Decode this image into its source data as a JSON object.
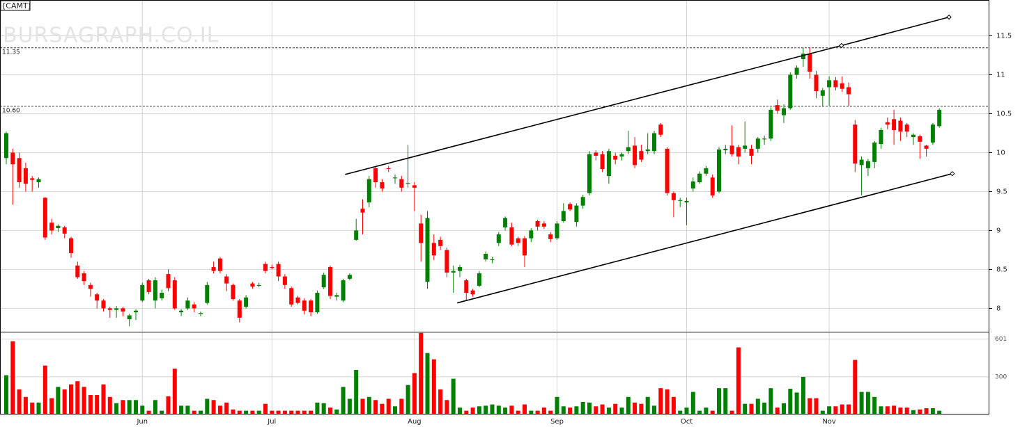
{
  "chart_data": {
    "type": "candlestick",
    "title": "[CAMT]",
    "watermark": "BURSAGRAPH.CO.IL",
    "up_color": "#008000",
    "down_color": "#ff0000",
    "grid": true,
    "categories": [
      null,
      null,
      null,
      null,
      null,
      null,
      null,
      null,
      null,
      null,
      null,
      null,
      null,
      null,
      null,
      null,
      null,
      null,
      null,
      null,
      null,
      "Jun",
      null,
      null,
      null,
      null,
      null,
      null,
      null,
      null,
      null,
      null,
      null,
      null,
      null,
      null,
      null,
      null,
      null,
      null,
      null,
      "Jul",
      null,
      null,
      null,
      null,
      null,
      null,
      null,
      null,
      null,
      null,
      null,
      null,
      null,
      null,
      null,
      null,
      null,
      null,
      null,
      null,
      null,
      "Aug",
      null,
      null,
      null,
      null,
      null,
      null,
      null,
      null,
      null,
      null,
      null,
      null,
      null,
      null,
      null,
      null,
      null,
      null,
      null,
      null,
      null,
      "Sep",
      null,
      null,
      null,
      null,
      null,
      null,
      null,
      null,
      null,
      null,
      null,
      null,
      null,
      null,
      null,
      null,
      null,
      null,
      null,
      "Oct",
      null,
      null,
      null,
      null,
      null,
      null,
      null,
      null,
      null,
      null,
      null,
      null,
      null,
      null,
      null,
      null,
      null,
      null,
      null,
      null,
      null,
      "Nov",
      null,
      null,
      null,
      null,
      null,
      null,
      null,
      null,
      null,
      null,
      null,
      null,
      null,
      null,
      null,
      null,
      null
    ],
    "open": [
      9.93,
      10.0,
      9.93,
      9.8,
      9.67,
      9.62,
      9.42,
      9.1,
      9.03,
      9.04,
      8.9,
      8.55,
      8.45,
      8.3,
      8.18,
      8.1,
      8.0,
      7.98,
      8.0,
      7.86,
      7.95,
      8.1,
      8.36,
      8.1,
      8.13,
      8.44,
      8.36,
      7.95,
      8.0,
      8.05,
      7.93,
      8.07,
      8.53,
      8.64,
      8.41,
      8.3,
      8.1,
      8.02,
      8.32,
      8.29,
      8.57,
      8.53,
      8.57,
      8.41,
      8.26,
      8.14,
      8.1,
      8.1,
      7.95,
      8.27,
      8.53,
      8.15,
      8.1,
      8.38,
      8.88,
      9.28,
      9.36,
      9.8,
      9.62,
      9.8,
      9.67,
      9.66,
      9.6,
      9.58,
      9.09,
      8.34,
      8.84,
      8.88,
      8.75,
      8.46,
      8.48,
      8.36,
      8.23,
      8.29,
      8.63,
      8.62,
      8.84,
      9.04,
      9.04,
      8.9,
      8.9,
      8.9,
      9.12,
      9.09,
      8.95,
      8.9,
      9.12,
      9.34,
      9.11,
      9.32,
      9.48,
      10.0,
      9.98,
      9.7,
      9.96,
      9.95,
      10.02,
      10.09,
      10.02,
      10.02,
      10.02,
      10.36,
      10.05,
      9.48,
      9.38,
      9.36,
      9.54,
      9.62,
      9.73,
      9.68,
      9.5,
      10.03,
      10.09,
      10.07,
      10.05,
      10.05,
      10.05,
      10.17,
      10.18,
      10.61,
      10.48,
      10.57,
      11.0,
      11.2,
      11.27,
      11.0,
      10.73,
      10.84,
      10.93,
      10.89,
      10.84,
      10.36,
      9.84,
      9.8,
      9.88,
      10.11,
      10.39,
      10.43,
      10.41,
      10.36,
      10.2,
      10.21,
      10.09,
      10.13,
      10.34
    ],
    "high": [
      10.27,
      10.05,
      10.0,
      9.87,
      9.7,
      9.68,
      9.43,
      9.15,
      9.08,
      9.06,
      8.92,
      8.6,
      8.48,
      8.33,
      8.2,
      8.12,
      8.02,
      8.03,
      8.02,
      7.93,
      7.99,
      8.33,
      8.38,
      8.4,
      8.24,
      8.5,
      8.4,
      7.99,
      8.14,
      8.08,
      7.96,
      8.34,
      8.6,
      8.66,
      8.44,
      8.32,
      8.12,
      8.17,
      8.34,
      8.33,
      8.6,
      8.56,
      8.6,
      8.44,
      8.28,
      8.16,
      8.13,
      8.12,
      8.23,
      8.46,
      8.55,
      8.2,
      8.38,
      8.45,
      9.15,
      9.4,
      9.7,
      9.82,
      9.66,
      9.83,
      9.72,
      9.7,
      10.1,
      9.62,
      9.2,
      9.25,
      8.95,
      8.92,
      8.78,
      8.55,
      8.56,
      8.38,
      8.25,
      8.48,
      8.73,
      8.66,
      8.98,
      9.18,
      9.1,
      8.92,
      8.93,
      9.03,
      9.14,
      9.12,
      8.98,
      9.12,
      9.35,
      9.36,
      9.35,
      9.46,
      10.02,
      10.03,
      10.02,
      10.05,
      10.0,
      10.0,
      10.28,
      10.2,
      10.1,
      10.25,
      10.28,
      10.38,
      10.07,
      9.5,
      9.42,
      9.42,
      9.68,
      9.76,
      9.83,
      9.72,
      10.07,
      10.1,
      10.35,
      10.1,
      10.4,
      10.1,
      10.2,
      10.22,
      10.58,
      10.68,
      10.62,
      11.03,
      11.12,
      11.35,
      11.35,
      11.05,
      10.83,
      10.98,
      10.97,
      10.98,
      10.9,
      10.42,
      9.95,
      9.92,
      10.15,
      10.32,
      10.45,
      10.55,
      10.45,
      10.38,
      10.25,
      10.23,
      10.1,
      10.38,
      10.57
    ],
    "low": [
      9.85,
      9.33,
      9.55,
      9.5,
      9.5,
      9.55,
      8.88,
      8.95,
      8.98,
      8.9,
      8.65,
      8.38,
      8.3,
      8.15,
      8.0,
      7.96,
      7.88,
      7.88,
      7.9,
      7.77,
      7.85,
      8.08,
      8.18,
      8.0,
      8.1,
      8.22,
      7.98,
      7.9,
      7.98,
      7.95,
      7.9,
      8.05,
      8.45,
      8.45,
      8.22,
      8.1,
      7.82,
      8.0,
      8.25,
      8.27,
      8.45,
      8.5,
      8.35,
      8.25,
      8.02,
      8.05,
      7.92,
      7.9,
      7.93,
      8.25,
      8.12,
      8.1,
      8.08,
      8.36,
      8.87,
      8.95,
      9.3,
      9.55,
      9.5,
      9.75,
      9.6,
      9.5,
      9.55,
      9.25,
      8.6,
      8.25,
      8.62,
      8.75,
      8.4,
      8.2,
      8.4,
      8.1,
      8.15,
      8.27,
      8.6,
      8.58,
      8.8,
      9.0,
      8.8,
      8.8,
      8.53,
      8.85,
      9.0,
      9.02,
      8.85,
      8.88,
      9.1,
      9.25,
      9.05,
      9.28,
      9.45,
      9.9,
      9.75,
      9.6,
      9.85,
      9.9,
      9.98,
      9.8,
      9.88,
      9.98,
      9.98,
      10.2,
      9.45,
      9.17,
      9.3,
      9.07,
      9.5,
      9.6,
      9.7,
      9.42,
      9.48,
      9.98,
      9.95,
      9.85,
      10.0,
      9.85,
      10.0,
      10.1,
      10.15,
      10.5,
      10.38,
      10.55,
      10.95,
      11.1,
      10.95,
      10.7,
      10.6,
      10.6,
      10.8,
      10.78,
      10.6,
      9.75,
      9.45,
      9.7,
      9.8,
      10.05,
      10.3,
      10.1,
      10.15,
      10.2,
      10.1,
      9.92,
      9.95,
      10.1,
      10.32
    ],
    "close": [
      10.25,
      9.85,
      9.62,
      9.6,
      9.65,
      9.66,
      8.91,
      9.0,
      9.06,
      8.96,
      8.71,
      8.4,
      8.35,
      8.25,
      8.1,
      8.0,
      7.98,
      8.0,
      7.96,
      7.91,
      7.97,
      8.3,
      8.21,
      8.36,
      8.2,
      8.26,
      8.0,
      7.97,
      8.1,
      8.0,
      7.94,
      8.3,
      8.48,
      8.48,
      8.32,
      8.12,
      7.88,
      8.14,
      8.28,
      8.3,
      8.48,
      8.52,
      8.41,
      8.3,
      8.05,
      8.07,
      7.97,
      7.95,
      8.2,
      8.43,
      8.16,
      8.17,
      8.36,
      8.43,
      9.0,
      9.23,
      9.66,
      9.62,
      9.54,
      9.79,
      9.68,
      9.55,
      9.61,
      9.55,
      8.84,
      9.16,
      8.68,
      8.8,
      8.46,
      8.48,
      8.53,
      8.2,
      8.18,
      8.45,
      8.7,
      8.63,
      8.95,
      9.16,
      8.82,
      8.84,
      8.68,
      9.0,
      9.05,
      9.05,
      8.89,
      9.09,
      9.25,
      9.27,
      9.32,
      9.43,
      9.98,
      9.96,
      9.79,
      10.02,
      9.91,
      9.98,
      10.07,
      9.84,
      9.91,
      10.04,
      10.25,
      10.23,
      9.48,
      9.39,
      9.39,
      9.38,
      9.63,
      9.73,
      9.8,
      9.45,
      10.04,
      10.05,
      9.98,
      9.95,
      10.09,
      9.96,
      10.18,
      10.18,
      10.55,
      10.54,
      10.57,
      11.0,
      11.09,
      11.27,
      11.04,
      10.79,
      10.8,
      10.93,
      10.84,
      10.82,
      10.75,
      9.86,
      9.91,
      9.89,
      10.13,
      10.29,
      10.36,
      10.29,
      10.27,
      10.27,
      10.23,
      10.14,
      10.05,
      10.36,
      10.55
    ],
    "ylim": [
      7.7,
      11.96
    ],
    "yticks": [
      8,
      8.5,
      9,
      9.5,
      10,
      10.5,
      11,
      11.5
    ],
    "hlines": [
      11.35,
      {
        "value": 10.6,
        "label": "10.60"
      }
    ],
    "trendlines": [
      {
        "x": [
          52.3,
          128.9,
          145.5
        ],
        "values": [
          9.72,
          11.375,
          11.74
        ]
      },
      {
        "x": [
          69.6,
          146.0
        ],
        "values": [
          8.07,
          9.73
        ]
      }
    ],
    "volume": {
      "values": [
        313,
        584,
        200,
        140,
        95,
        95,
        390,
        130,
        220,
        200,
        240,
        265,
        220,
        155,
        155,
        240,
        140,
        90,
        115,
        115,
        115,
        70,
        30,
        115,
        30,
        145,
        365,
        70,
        70,
        30,
        30,
        125,
        115,
        70,
        95,
        40,
        30,
        30,
        30,
        30,
        85,
        30,
        30,
        30,
        30,
        30,
        30,
        30,
        95,
        90,
        55,
        40,
        220,
        125,
        355,
        125,
        140,
        115,
        85,
        125,
        65,
        125,
        235,
        330,
        650,
        490,
        440,
        200,
        115,
        285,
        55,
        30,
        55,
        65,
        70,
        80,
        70,
        55,
        70,
        30,
        80,
        30,
        30,
        55,
        30,
        140,
        65,
        55,
        65,
        100,
        95,
        65,
        80,
        55,
        85,
        55,
        140,
        95,
        85,
        140,
        70,
        210,
        200,
        140,
        30,
        55,
        180,
        30,
        55,
        30,
        210,
        210,
        30,
        535,
        85,
        85,
        125,
        95,
        210,
        55,
        90,
        205,
        175,
        300,
        130,
        130,
        30,
        65,
        65,
        80,
        80,
        435,
        180,
        180,
        140,
        65,
        65,
        70,
        55,
        55,
        35,
        40,
        50,
        50,
        30
      ],
      "ylim": [
        0,
        660
      ],
      "yticks": [
        300,
        601
      ]
    }
  }
}
